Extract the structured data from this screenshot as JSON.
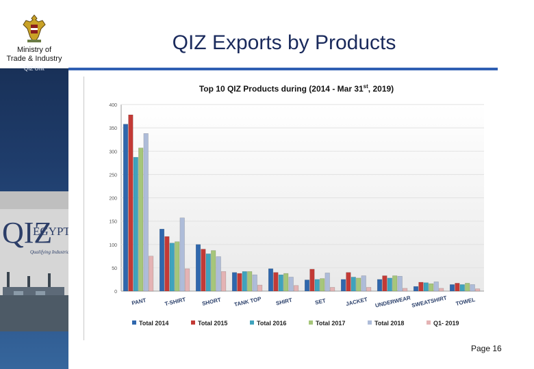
{
  "ministry": {
    "line1": "Ministry of",
    "line2": "Trade & Industry",
    "unit": "QIZ Unit"
  },
  "logo": {
    "text_left": "QIZ",
    "text_right": "EGYPT",
    "tagline": "Qualifying Industrial Zones"
  },
  "slide": {
    "title": "QIZ Exports by Products",
    "page": "Page 16"
  },
  "colors": {
    "title": "#1a2a5c",
    "rule": "#2f5fb3",
    "series": [
      "#2f67ad",
      "#c33a36",
      "#3fa3bd",
      "#a6c67a",
      "#aebcd9",
      "#e4b3b4"
    ]
  },
  "chart_data": {
    "type": "bar",
    "title_main": "Top 10 QIZ Products during (2014 - Mar 31",
    "title_sup": "st",
    "title_end": ", 2019)",
    "categories": [
      "PANT",
      "T-SHIRT",
      "SHORT",
      "TANK TOP",
      "SHIRT",
      "SET",
      "JACKET",
      "UNDERWEAR",
      "SWEATSHIRT",
      "TOWEL"
    ],
    "series": [
      {
        "name": "Total 2014",
        "values": [
          358,
          133,
          100,
          40,
          48,
          24,
          25,
          25,
          10,
          14
        ]
      },
      {
        "name": "Total 2015",
        "values": [
          378,
          117,
          90,
          38,
          40,
          47,
          40,
          33,
          19,
          17
        ]
      },
      {
        "name": "Total  2016",
        "values": [
          287,
          103,
          80,
          42,
          35,
          25,
          30,
          28,
          18,
          14
        ]
      },
      {
        "name": "Total  2017",
        "values": [
          307,
          106,
          87,
          42,
          38,
          27,
          28,
          33,
          16,
          17
        ]
      },
      {
        "name": "Total  2018",
        "values": [
          338,
          157,
          74,
          35,
          30,
          39,
          33,
          32,
          20,
          14
        ]
      },
      {
        "name": "Q1- 2019",
        "values": [
          75,
          48,
          42,
          13,
          12,
          8,
          8,
          6,
          6,
          5
        ]
      }
    ],
    "yticks": [
      0,
      50,
      100,
      150,
      200,
      250,
      300,
      350,
      400
    ],
    "ylim": [
      0,
      400
    ],
    "xlabel": "",
    "ylabel": "",
    "legend": "bottom"
  }
}
